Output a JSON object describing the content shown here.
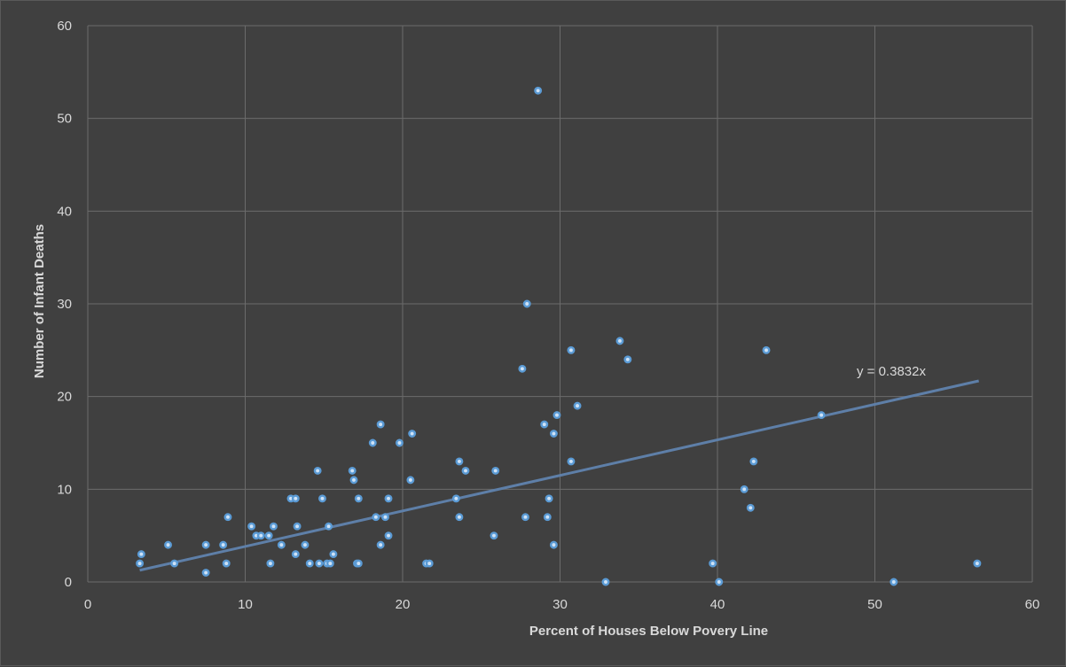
{
  "chart_data": {
    "type": "scatter",
    "title": "",
    "xlabel": "Percent of Houses Below Povery Line",
    "ylabel": "Number of Infant Deaths",
    "xlim": [
      0,
      60
    ],
    "ylim": [
      0,
      60
    ],
    "xticks": [
      "0",
      "10",
      "20",
      "30",
      "40",
      "50",
      "60"
    ],
    "yticks": [
      "0",
      "10",
      "20",
      "30",
      "40",
      "50",
      "60"
    ],
    "grid": true,
    "background": "#404040",
    "point_color": "#5b9bd5",
    "trendline": {
      "type": "linear-through-origin",
      "slope": 0.3832,
      "x_range": [
        3.3,
        56.6
      ],
      "label": "y = 0.3832x",
      "color": "#5e7fa8"
    },
    "points": [
      [
        3.3,
        2
      ],
      [
        3.4,
        3
      ],
      [
        5.1,
        4
      ],
      [
        5.5,
        2
      ],
      [
        7.5,
        4
      ],
      [
        7.5,
        1
      ],
      [
        8.6,
        4
      ],
      [
        8.8,
        2
      ],
      [
        8.9,
        7
      ],
      [
        10.4,
        6
      ],
      [
        10.7,
        5
      ],
      [
        11.0,
        5
      ],
      [
        11.5,
        5
      ],
      [
        11.6,
        2
      ],
      [
        11.8,
        6
      ],
      [
        12.3,
        4
      ],
      [
        12.9,
        9
      ],
      [
        13.2,
        9
      ],
      [
        13.2,
        3
      ],
      [
        13.3,
        6
      ],
      [
        13.8,
        4
      ],
      [
        14.1,
        2
      ],
      [
        14.6,
        12
      ],
      [
        14.7,
        2
      ],
      [
        14.9,
        9
      ],
      [
        15.2,
        2
      ],
      [
        15.3,
        6
      ],
      [
        15.4,
        2
      ],
      [
        15.6,
        3
      ],
      [
        16.8,
        12
      ],
      [
        16.9,
        11
      ],
      [
        17.1,
        2
      ],
      [
        17.2,
        9
      ],
      [
        17.2,
        2
      ],
      [
        18.1,
        15
      ],
      [
        18.3,
        7
      ],
      [
        18.6,
        4
      ],
      [
        18.6,
        17
      ],
      [
        18.9,
        7
      ],
      [
        19.1,
        9
      ],
      [
        19.1,
        5
      ],
      [
        19.8,
        15
      ],
      [
        20.5,
        11
      ],
      [
        20.6,
        16
      ],
      [
        21.5,
        2
      ],
      [
        21.7,
        2
      ],
      [
        23.4,
        9
      ],
      [
        23.6,
        13
      ],
      [
        23.6,
        7
      ],
      [
        24.0,
        12
      ],
      [
        25.8,
        5
      ],
      [
        25.9,
        12
      ],
      [
        27.6,
        23
      ],
      [
        27.8,
        7
      ],
      [
        27.9,
        30
      ],
      [
        28.6,
        53
      ],
      [
        29.0,
        17
      ],
      [
        29.2,
        7
      ],
      [
        29.3,
        9
      ],
      [
        29.6,
        16
      ],
      [
        29.6,
        4
      ],
      [
        29.8,
        18
      ],
      [
        30.7,
        13
      ],
      [
        30.7,
        25
      ],
      [
        31.1,
        19
      ],
      [
        32.9,
        0
      ],
      [
        33.8,
        26
      ],
      [
        34.3,
        24
      ],
      [
        39.7,
        2
      ],
      [
        40.1,
        0
      ],
      [
        41.7,
        10
      ],
      [
        42.1,
        8
      ],
      [
        42.3,
        13
      ],
      [
        43.1,
        25
      ],
      [
        46.6,
        18
      ],
      [
        51.2,
        0
      ],
      [
        56.5,
        2
      ]
    ]
  }
}
